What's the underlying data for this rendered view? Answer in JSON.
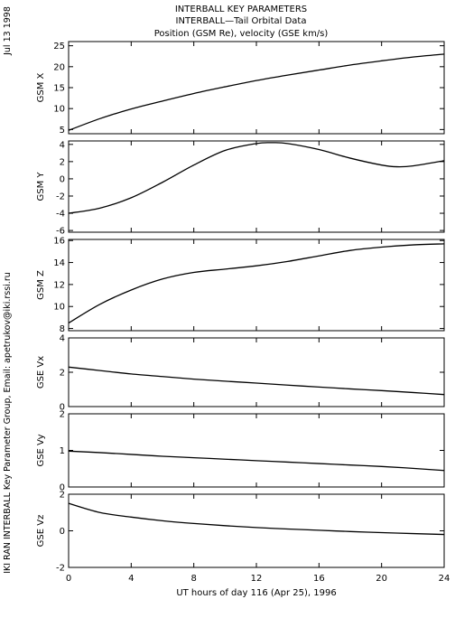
{
  "side_labels": {
    "date": "Jul 13 1998",
    "credit": "IKI RAN INTERBALL Key Parameter Group, Email: apetrukov@iki.rssi.ru"
  },
  "chart_data": {
    "type": "line",
    "title_lines": [
      "INTERBALL KEY PARAMETERS",
      "INTERBALL—Tail Orbital Data",
      "Position (GSM Re), velocity (GSE km/s)"
    ],
    "xlabel": "UT hours of day 116 (Apr 25), 1996",
    "xlim": [
      0,
      24
    ],
    "xticks": [
      0,
      4,
      8,
      12,
      16,
      20,
      24
    ],
    "line_color": "#000000",
    "panels": [
      {
        "ylabel": "GSM X",
        "ylim": [
          4,
          26
        ],
        "yticks": [
          5,
          10,
          15,
          20,
          25
        ],
        "x": [
          0,
          2,
          4,
          6,
          8,
          10,
          12,
          14,
          16,
          18,
          20,
          22,
          24
        ],
        "y": [
          4.8,
          7.6,
          9.9,
          11.8,
          13.6,
          15.2,
          16.7,
          18.0,
          19.2,
          20.4,
          21.4,
          22.3,
          23.0
        ]
      },
      {
        "ylabel": "GSM Y",
        "ylim": [
          -6.2,
          4.4
        ],
        "yticks": [
          -6,
          -4,
          -2,
          0,
          2,
          4
        ],
        "x": [
          0,
          2,
          4,
          6,
          8,
          10,
          12,
          13,
          14,
          16,
          18,
          20,
          21,
          22,
          24
        ],
        "y": [
          -4.0,
          -3.4,
          -2.2,
          -0.4,
          1.6,
          3.3,
          4.1,
          4.2,
          4.1,
          3.4,
          2.4,
          1.6,
          1.4,
          1.5,
          2.1
        ]
      },
      {
        "ylabel": "GSM Z",
        "ylim": [
          7.8,
          16.1
        ],
        "yticks": [
          8,
          10,
          12,
          14,
          16
        ],
        "x": [
          0,
          2,
          4,
          6,
          8,
          10,
          12,
          14,
          16,
          18,
          20,
          22,
          24
        ],
        "y": [
          8.5,
          10.2,
          11.5,
          12.5,
          13.1,
          13.4,
          13.7,
          14.1,
          14.6,
          15.1,
          15.4,
          15.6,
          15.7
        ]
      },
      {
        "ylabel": "GSE Vx",
        "ylim": [
          0,
          4
        ],
        "yticks": [
          0,
          2,
          4
        ],
        "x": [
          0,
          2,
          4,
          6,
          8,
          10,
          12,
          14,
          16,
          18,
          20,
          22,
          24
        ],
        "y": [
          2.3,
          2.1,
          1.9,
          1.75,
          1.6,
          1.48,
          1.37,
          1.25,
          1.14,
          1.03,
          0.93,
          0.82,
          0.7
        ]
      },
      {
        "ylabel": "GSE Vy",
        "ylim": [
          0,
          2
        ],
        "yticks": [
          0,
          1,
          2
        ],
        "x": [
          0,
          2,
          4,
          6,
          8,
          10,
          12,
          14,
          16,
          18,
          20,
          22,
          24
        ],
        "y": [
          0.98,
          0.94,
          0.89,
          0.84,
          0.8,
          0.76,
          0.72,
          0.68,
          0.64,
          0.6,
          0.56,
          0.51,
          0.45
        ]
      },
      {
        "ylabel": "GSE Vz",
        "ylim": [
          -2,
          2
        ],
        "yticks": [
          -2,
          0,
          2
        ],
        "x": [
          0,
          2,
          4,
          6,
          8,
          10,
          12,
          14,
          16,
          18,
          20,
          22,
          24
        ],
        "y": [
          1.5,
          1.0,
          0.75,
          0.55,
          0.4,
          0.28,
          0.18,
          0.1,
          0.03,
          -0.04,
          -0.1,
          -0.15,
          -0.2
        ]
      }
    ]
  }
}
